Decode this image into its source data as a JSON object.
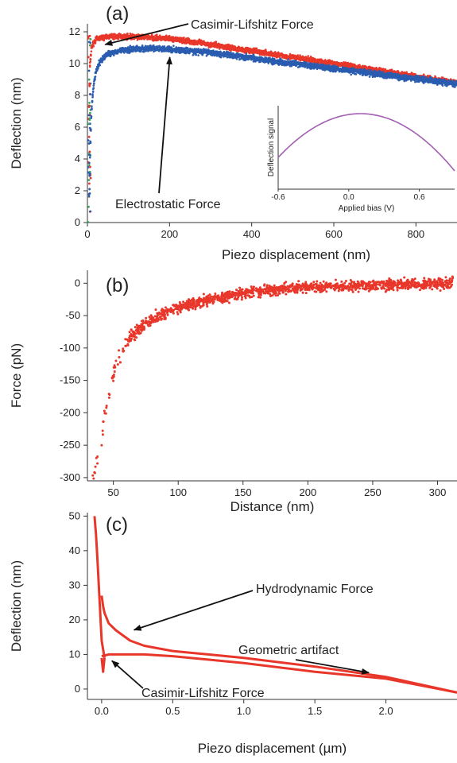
{
  "chart_data": [
    {
      "panel": "(a)",
      "type": "scatter",
      "xlabel": "Piezo displacement (nm)",
      "ylabel": "Deflection (nm)",
      "xlim": [
        0,
        900
      ],
      "ylim": [
        0,
        12.5
      ],
      "x_ticks": [
        0,
        200,
        400,
        600,
        800
      ],
      "y_ticks": [
        0,
        2,
        4,
        6,
        8,
        10,
        12
      ],
      "colors": {
        "casimir": "#e8372a",
        "electrostatic": "#2a5db0",
        "approach_mix": "#3aa860"
      },
      "series": [
        {
          "color_key": "casimir",
          "x": [
            3,
            6,
            10,
            15,
            20,
            30,
            40,
            50,
            75,
            100,
            150,
            200,
            250,
            300,
            400,
            500,
            600,
            700,
            800,
            900
          ],
          "y": [
            6.0,
            9.8,
            11.0,
            11.3,
            11.5,
            11.6,
            11.65,
            11.7,
            11.7,
            11.7,
            11.65,
            11.55,
            11.4,
            11.2,
            10.8,
            10.4,
            10.0,
            9.6,
            9.2,
            8.8
          ]
        },
        {
          "color_key": "electrostatic",
          "x": [
            3,
            6,
            10,
            15,
            20,
            30,
            40,
            50,
            75,
            100,
            150,
            200,
            250,
            300,
            400,
            500,
            600,
            700,
            800,
            900
          ],
          "y": [
            0.5,
            4.0,
            7.0,
            8.6,
            9.4,
            10.1,
            10.4,
            10.6,
            10.8,
            10.9,
            10.95,
            10.9,
            10.8,
            10.7,
            10.35,
            10.0,
            9.7,
            9.35,
            9.05,
            8.7
          ]
        }
      ],
      "annotations": [
        {
          "text": "Casimir-Lifshitz Force",
          "target": [
            20,
            11.5
          ]
        },
        {
          "text": "Electrostatic Force",
          "target": [
            100,
            10.8
          ]
        }
      ],
      "inset": {
        "xlabel": "Applied bias (V)",
        "ylabel": "Deflection signal",
        "xlim": [
          -0.6,
          0.9
        ],
        "x_ticks": [
          -0.6,
          0.0,
          0.6
        ],
        "x_tick_labels": [
          "-0.6",
          "0.0",
          "0.6"
        ],
        "peak_x": 0.1,
        "color": "#a25fb2"
      }
    },
    {
      "panel": "(b)",
      "type": "scatter",
      "xlabel": "Distance (nm)",
      "ylabel": "Force (pN)",
      "xlim": [
        30,
        315
      ],
      "ylim": [
        -305,
        20
      ],
      "x_ticks": [
        50,
        100,
        150,
        200,
        250,
        300
      ],
      "y_ticks": [
        -300,
        -250,
        -200,
        -150,
        -100,
        -50,
        0
      ],
      "color": "#e8372a",
      "series": [
        {
          "x": [
            35,
            40,
            45,
            50,
            55,
            60,
            70,
            80,
            90,
            100,
            125,
            150,
            175,
            200,
            250,
            300,
            312
          ],
          "y": [
            -300,
            -250,
            -185,
            -140,
            -110,
            -90,
            -70,
            -55,
            -45,
            -38,
            -25,
            -15,
            -10,
            -6,
            -3,
            -1,
            0
          ]
        }
      ]
    },
    {
      "panel": "(c)",
      "type": "line",
      "xlabel": "Piezo displacement (µm)",
      "ylabel": "Deflection (nm)",
      "xlim": [
        -0.1,
        2.5
      ],
      "ylim": [
        -3,
        51
      ],
      "x_ticks": [
        0.0,
        0.5,
        1.0,
        1.5,
        2.0
      ],
      "x_tick_labels": [
        "0.0",
        "0.5",
        "1.0",
        "1.5",
        "2.0"
      ],
      "y_ticks": [
        0,
        10,
        20,
        30,
        40,
        50
      ],
      "color": "#e8372a",
      "series": [
        {
          "x": [
            -0.05,
            -0.04,
            -0.03,
            -0.02,
            -0.01,
            0.0,
            0.02
          ],
          "y": [
            50,
            45,
            38,
            30,
            22,
            14,
            9
          ]
        },
        {
          "x": [
            0.0,
            0.01,
            0.02,
            0.05,
            0.1,
            0.2,
            0.3,
            0.5,
            0.75,
            1.0,
            1.5,
            2.0,
            2.5
          ],
          "y": [
            27,
            24,
            22,
            19,
            17,
            14,
            12.5,
            11,
            10,
            9,
            6.5,
            3.5,
            -1
          ]
        },
        {
          "x": [
            0.0,
            0.05,
            0.1,
            0.2,
            0.3,
            0.5,
            1.0,
            1.5,
            2.0,
            2.5
          ],
          "y": [
            9.5,
            10,
            10,
            10,
            10,
            9.5,
            7.5,
            5,
            3,
            -1
          ]
        },
        {
          "x": [
            0.0,
            0.01,
            0.02
          ],
          "y": [
            9,
            5,
            9
          ]
        }
      ],
      "annotations": [
        {
          "text": "Hydrodynamic Force",
          "target": [
            0.25,
            18
          ]
        },
        {
          "text": "Geometric artifact",
          "target": [
            1.88,
            3.8
          ]
        },
        {
          "text": "Casimir-Lifshitz Force",
          "target": [
            0.05,
            10
          ]
        }
      ]
    }
  ]
}
